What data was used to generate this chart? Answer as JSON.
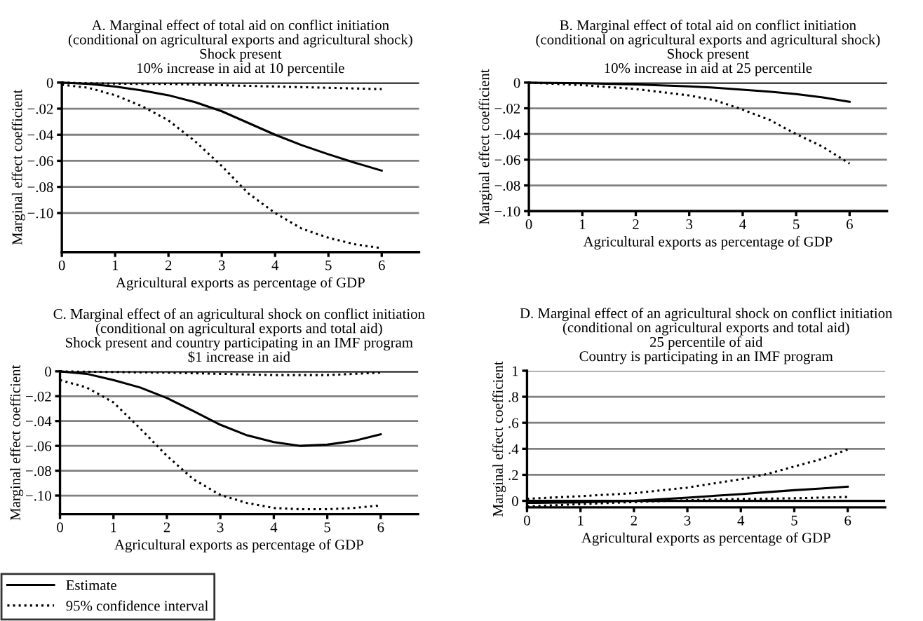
{
  "chart_data": [
    {
      "type": "line",
      "title": "A. Marginal effect of total aid on conflict initiation\n(conditional on agricultural exports and agricultural shock)\nShock present\n10% increase in aid at 10 percentile",
      "xlabel": "Agricultural exports as percentage of GDP",
      "ylabel": "Marginal effect coefficient",
      "x": [
        0,
        0.5,
        1,
        1.5,
        2,
        2.5,
        3,
        3.5,
        4,
        4.5,
        5,
        5.5,
        6
      ],
      "series": [
        {
          "color": "#000000",
          "line_style": "solid",
          "values": [
            0,
            -0.001,
            -0.003,
            -0.006,
            -0.0097,
            -0.015,
            -0.022,
            -0.031,
            -0.04,
            -0.048,
            -0.055,
            -0.0615,
            -0.0675
          ]
        },
        {
          "color": "#000000",
          "line_style": "dotted",
          "values": [
            -0.0016,
            -0.004,
            -0.0097,
            -0.018,
            -0.029,
            -0.045,
            -0.064,
            -0.085,
            -0.1,
            -0.112,
            -0.119,
            -0.124,
            -0.127
          ]
        },
        {
          "color": "#000000",
          "line_style": "dotted",
          "values": [
            0,
            -0.0005,
            -0.0008,
            -0.001,
            -0.001,
            -0.0015,
            -0.002,
            -0.0025,
            -0.003,
            -0.0035,
            -0.004,
            -0.0045,
            -0.005
          ]
        }
      ],
      "xlim": [
        0,
        6.7
      ],
      "xticks": [
        0,
        1,
        2,
        3,
        4,
        5,
        6
      ],
      "ylim": [
        -0.13,
        0
      ],
      "yticks": [
        {
          "value": -0.1,
          "label": "−.10"
        },
        {
          "value": -0.08,
          "label": "−.08"
        },
        {
          "value": -0.06,
          "label": "−.06"
        },
        {
          "value": -0.04,
          "label": "−.04"
        },
        {
          "value": -0.02,
          "label": "−.02"
        },
        0
      ],
      "grid": "y",
      "ref_lines": [
        {
          "axis": "y",
          "value": 0,
          "color": "#000000",
          "line_style": "solid"
        }
      ]
    },
    {
      "type": "line",
      "title": "B. Marginal effect of total aid on conflict initiation\n(conditional on agricultural exports and agricultural shock)\nShock present\n10% increase in aid at 25 percentile",
      "xlabel": "Agricultural exports as percentage of GDP",
      "ylabel": "Marginal effect coefficient",
      "x": [
        0,
        1,
        2,
        3,
        3.5,
        4,
        4.5,
        5,
        5.5,
        6
      ],
      "series": [
        {
          "color": "#000000",
          "line_style": "solid",
          "values": [
            0,
            -0.0005,
            -0.0015,
            -0.003,
            -0.004,
            -0.0055,
            -0.007,
            -0.009,
            -0.0115,
            -0.015
          ]
        },
        {
          "color": "#000000",
          "line_style": "dotted",
          "values": [
            0,
            -0.002,
            -0.005,
            -0.01,
            -0.014,
            -0.021,
            -0.029,
            -0.04,
            -0.05,
            -0.063
          ]
        }
      ],
      "xlim": [
        0,
        6.7
      ],
      "xticks": [
        0,
        1,
        2,
        3,
        4,
        5,
        6
      ],
      "ylim": [
        -0.1,
        0
      ],
      "yticks": [
        {
          "value": -0.1,
          "label": "−.10"
        },
        {
          "value": -0.08,
          "label": "−.08"
        },
        {
          "value": -0.06,
          "label": "−.06"
        },
        {
          "value": -0.04,
          "label": "−.04"
        },
        {
          "value": -0.02,
          "label": "−.02"
        },
        0
      ],
      "grid": "y",
      "ref_lines": [
        {
          "axis": "y",
          "value": 0,
          "color": "#000000",
          "line_style": "solid"
        }
      ]
    },
    {
      "type": "line",
      "title": "C. Marginal effect of an agricultural shock on conflict initiation\n(conditional on agricultural exports and total aid)\nShock present and country participating in an IMF program\n$1 increase in aid",
      "xlabel": "Agricultural exports as percentage of GDP",
      "ylabel": "Marginal effect coefficient",
      "x": [
        0,
        0.5,
        1,
        1.5,
        2,
        2.5,
        3,
        3.5,
        4,
        4.5,
        5,
        5.5,
        6
      ],
      "series": [
        {
          "name": "Estimate",
          "color": "#000000",
          "line_style": "solid",
          "values": [
            0,
            -0.002,
            -0.007,
            -0.013,
            -0.0215,
            -0.032,
            -0.043,
            -0.0515,
            -0.057,
            -0.06,
            -0.059,
            -0.056,
            -0.0507
          ]
        },
        {
          "name": "95% confidence interval",
          "color": "#000000",
          "line_style": "dotted",
          "values": [
            -0.007,
            -0.013,
            -0.025,
            -0.046,
            -0.068,
            -0.087,
            -0.0995,
            -0.106,
            -0.11,
            -0.111,
            -0.111,
            -0.11,
            -0.108
          ]
        },
        {
          "color": "#000000",
          "line_style": "dotted",
          "values": [
            0,
            -0.0003,
            -0.0005,
            -0.0008,
            -0.001,
            -0.0015,
            -0.002,
            -0.0025,
            -0.003,
            -0.003,
            -0.003,
            -0.002,
            -0.001
          ]
        }
      ],
      "xlim": [
        0,
        6.7
      ],
      "xticks": [
        0,
        1,
        2,
        3,
        4,
        5,
        6
      ],
      "ylim": [
        -0.115,
        0
      ],
      "yticks": [
        {
          "value": -0.1,
          "label": "−.10"
        },
        {
          "value": -0.08,
          "label": "−.08"
        },
        {
          "value": -0.06,
          "label": "−.06"
        },
        {
          "value": -0.04,
          "label": "−.04"
        },
        {
          "value": -0.02,
          "label": "−.02"
        },
        0
      ],
      "grid": "y",
      "legend": "bottom left",
      "ref_lines": [
        {
          "axis": "y",
          "value": 0,
          "color": "#000000",
          "line_style": "solid"
        }
      ]
    },
    {
      "type": "line",
      "title": "D. Marginal effect of an agricultural shock on conflict initiation\n(conditional on agricultural exports and total aid)\n25 percentile of aid\nCountry is participating in an IMF program",
      "xlabel": "Agricultural exports as percentage of GDP",
      "ylabel": "Marginal effect coefficient",
      "x": [
        0,
        1,
        2,
        3,
        4,
        4.5,
        5,
        5.5,
        6
      ],
      "series": [
        {
          "color": "#000000",
          "line_style": "solid",
          "values": [
            -0.016,
            -0.011,
            0,
            0.025,
            0.052,
            0.067,
            0.082,
            0.095,
            0.109
          ]
        },
        {
          "color": "#000000",
          "line_style": "dotted",
          "values": [
            -0.043,
            -0.025,
            -0.009,
            0.005,
            0.014,
            0.017,
            0.02,
            0.025,
            0.03
          ]
        },
        {
          "color": "#000000",
          "line_style": "dotted",
          "values": [
            0.016,
            0.036,
            0.059,
            0.102,
            0.166,
            0.207,
            0.264,
            0.32,
            0.395
          ]
        }
      ],
      "xlim": [
        0,
        6.7
      ],
      "xticks": [
        0,
        1,
        2,
        3,
        4,
        5,
        6
      ],
      "ylim": [
        -0.05,
        1
      ],
      "yticks": [
        0,
        {
          "value": 0.2,
          "label": ".2"
        },
        {
          "value": 0.4,
          "label": ".4"
        },
        {
          "value": 0.6,
          "label": ".6"
        },
        {
          "value": 0.8,
          "label": ".8"
        },
        1
      ],
      "grid": "y",
      "ref_lines": [
        {
          "axis": "y",
          "value": 0,
          "color": "#000000",
          "line_style": "solid"
        }
      ]
    }
  ]
}
